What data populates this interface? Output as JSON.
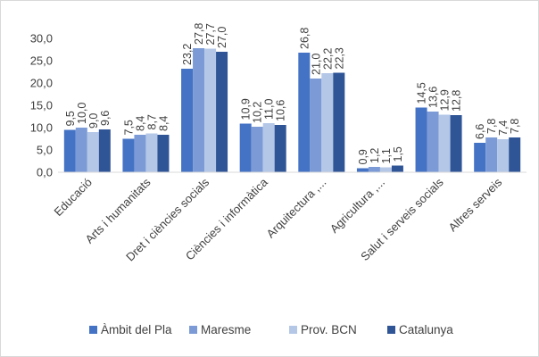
{
  "chart_data": {
    "type": "bar",
    "categories": [
      "Educació",
      "Arts i humanitats",
      "Dret i ciències socials",
      "Ciències i informàtica",
      "Arquitectura ,...",
      "Agricultura ,...",
      "Salut i serveis socials",
      "Altres serveis"
    ],
    "series": [
      {
        "name": "Àmbit del Pla",
        "color": "#4472c4",
        "values": [
          9.5,
          7.5,
          23.2,
          10.9,
          26.8,
          0.9,
          14.5,
          6.6
        ],
        "labels": [
          "9,5",
          "7,5",
          "23,2",
          "10,9",
          "26,8",
          "0,9",
          "14,5",
          "6,6"
        ]
      },
      {
        "name": "Maresme",
        "color": "#7c9bd6",
        "values": [
          10.0,
          8.4,
          27.8,
          10.2,
          21.0,
          1.2,
          13.6,
          7.8
        ],
        "labels": [
          "10,0",
          "8,4",
          "27,8",
          "10,2",
          "21,0",
          "1,2",
          "13,6",
          "7,8"
        ]
      },
      {
        "name": "Prov. BCN",
        "color": "#b4c7e7",
        "values": [
          9.0,
          8.7,
          27.7,
          11.0,
          22.2,
          1.1,
          12.9,
          7.4
        ],
        "labels": [
          "9,0",
          "8,7",
          "27,7",
          "11,0",
          "22,2",
          "1,1",
          "12,9",
          "7,4"
        ]
      },
      {
        "name": "Catalunya",
        "color": "#2f5597",
        "values": [
          9.6,
          8.4,
          27.0,
          10.6,
          22.3,
          1.5,
          12.8,
          7.8
        ],
        "labels": [
          "9,6",
          "8,4",
          "27,0",
          "10,6",
          "22,3",
          "1,5",
          "12,8",
          "7,8"
        ]
      }
    ],
    "yticks": [
      "0,0",
      "5,0",
      "10,0",
      "15,0",
      "20,0",
      "25,0",
      "30,0"
    ],
    "ylim": [
      0,
      30
    ],
    "title": "",
    "xlabel": "",
    "ylabel": "",
    "grid": false,
    "legend": "bottom",
    "axis_color": "#d9d9d9"
  }
}
